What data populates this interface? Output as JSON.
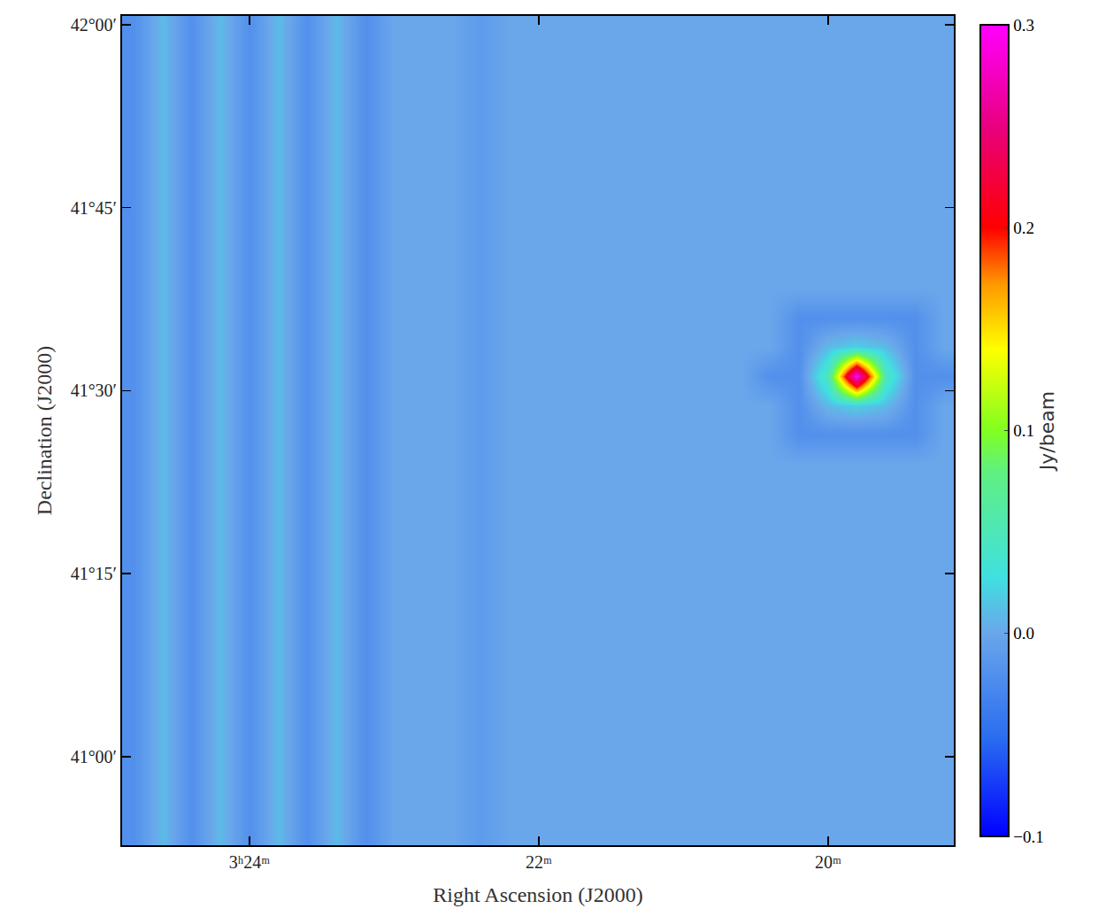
{
  "chart_data": {
    "type": "heatmap",
    "xlabel": "Right Ascension (J2000)",
    "ylabel": "Declination (J2000)",
    "xlim": [
      24.88,
      19.13
    ],
    "ylim": [
      40.879,
      42.012
    ],
    "xticks": [
      {
        "value": 24,
        "label": "3ʰ24ᵐ"
      },
      {
        "value": 22,
        "label": "22ᵐ"
      },
      {
        "value": 20,
        "label": "20ᵐ"
      }
    ],
    "yticks": [
      {
        "value": 42.0,
        "label": "42°00′"
      },
      {
        "value": 41.75,
        "label": "41°45′"
      },
      {
        "value": 41.5,
        "label": "41°30′"
      },
      {
        "value": 41.25,
        "label": "41°15′"
      },
      {
        "value": 41.0,
        "label": "41°00′"
      }
    ],
    "x": [
      24.8,
      24.6,
      24.4,
      24.2,
      24,
      23.8,
      23.6,
      23.4,
      23.2,
      23,
      22.8,
      22.6,
      22.4,
      22.2,
      22,
      21.8,
      21.6,
      21.4,
      21.2,
      21,
      20.8,
      20.6,
      20.4,
      20.2,
      20,
      19.8,
      19.6,
      19.4,
      19.2
    ],
    "y": [
      42.0,
      41.96,
      41.92,
      41.88,
      41.84,
      41.8,
      41.76,
      41.72,
      41.68,
      41.64,
      41.6,
      41.56,
      41.52,
      41.48,
      41.44,
      41.4,
      41.36,
      41.32,
      41.28,
      41.24,
      41.2,
      41.16,
      41.12,
      41.08,
      41.04,
      41.0,
      40.96,
      40.92,
      40.88
    ],
    "z": [
      [
        -0.02,
        0.01,
        -0.02,
        0.01,
        -0.02,
        0.01,
        -0.02,
        0.01,
        -0.02,
        0,
        0,
        0,
        -0.01,
        0,
        0,
        0,
        0,
        0,
        0,
        0,
        0,
        0,
        0,
        0,
        0,
        0,
        0,
        0,
        0
      ],
      [
        -0.02,
        0.01,
        -0.02,
        0.01,
        -0.02,
        0.01,
        -0.02,
        0.01,
        -0.02,
        0,
        0,
        0,
        -0.01,
        0,
        0,
        0,
        0,
        0,
        0,
        0,
        0,
        0,
        0,
        0,
        0,
        0,
        0,
        0,
        0
      ],
      [
        -0.02,
        0.01,
        -0.02,
        0.01,
        -0.02,
        0.01,
        -0.02,
        0.01,
        -0.02,
        0,
        0,
        0,
        -0.01,
        0,
        0,
        0,
        0,
        0,
        0,
        0,
        0,
        0,
        0,
        0,
        0,
        0,
        0,
        0,
        0
      ],
      [
        -0.02,
        0.01,
        -0.02,
        0.01,
        -0.02,
        0.01,
        -0.02,
        0.01,
        -0.02,
        0,
        0,
        0,
        -0.01,
        0,
        0,
        0,
        0,
        0,
        0,
        0,
        0,
        0,
        0,
        0,
        0,
        0,
        0,
        0,
        0
      ],
      [
        -0.02,
        0.01,
        -0.02,
        0.01,
        -0.02,
        0.01,
        -0.02,
        0.01,
        -0.02,
        0,
        0,
        0,
        -0.01,
        0,
        0,
        0,
        0,
        0,
        0,
        0,
        0,
        0,
        0,
        0,
        0,
        0,
        0,
        0,
        0
      ],
      [
        -0.02,
        0.01,
        -0.02,
        0.01,
        -0.02,
        0.01,
        -0.02,
        0.01,
        -0.02,
        0,
        0,
        0,
        -0.01,
        0,
        0,
        0,
        0,
        0,
        0,
        0,
        0,
        0,
        0,
        0,
        0,
        0,
        0,
        0,
        0
      ],
      [
        -0.02,
        0.01,
        -0.02,
        0.01,
        -0.02,
        0.01,
        -0.02,
        0.01,
        -0.02,
        0,
        0,
        0,
        -0.01,
        0,
        0,
        0,
        0,
        0,
        0,
        0,
        0,
        0,
        0,
        0,
        0,
        0,
        0,
        0,
        0
      ],
      [
        -0.02,
        0.01,
        -0.02,
        0.01,
        -0.02,
        0.01,
        -0.02,
        0.01,
        -0.02,
        0,
        0,
        0,
        -0.01,
        0,
        0,
        0,
        0,
        0,
        0,
        0,
        0,
        0,
        0,
        0,
        0,
        0,
        0,
        0,
        0
      ],
      [
        -0.02,
        0.01,
        -0.02,
        0.01,
        -0.02,
        0.01,
        -0.02,
        0.01,
        -0.02,
        0,
        0,
        0,
        -0.01,
        0,
        0,
        0,
        0,
        0,
        0,
        0,
        0,
        0,
        0,
        0,
        0,
        0,
        0,
        0,
        0
      ],
      [
        -0.02,
        0.01,
        -0.02,
        0.01,
        -0.02,
        0.01,
        -0.02,
        0.01,
        -0.02,
        0,
        0,
        0,
        -0.01,
        0,
        0,
        0,
        0,
        0,
        0,
        0,
        0,
        0,
        0,
        0,
        0,
        0,
        0,
        0,
        0
      ],
      [
        -0.02,
        0.01,
        -0.02,
        0.01,
        -0.02,
        0.01,
        -0.02,
        0.01,
        -0.02,
        0,
        0,
        0,
        -0.01,
        0,
        0,
        0,
        0,
        0,
        0,
        0,
        0,
        0,
        0,
        -0.02,
        -0.02,
        -0.02,
        -0.02,
        -0.02,
        0
      ],
      [
        -0.02,
        0.01,
        -0.02,
        0.01,
        -0.02,
        0.01,
        -0.02,
        0.01,
        -0.02,
        0,
        0,
        0,
        -0.01,
        0,
        0,
        0,
        0,
        0,
        0,
        0,
        0,
        0,
        0,
        -0.02,
        0.01,
        0.02,
        0.01,
        -0.02,
        0
      ],
      [
        -0.02,
        0.01,
        -0.02,
        0.01,
        -0.02,
        0.01,
        -0.02,
        0.01,
        -0.02,
        0,
        0,
        0,
        -0.01,
        0,
        0,
        0,
        0,
        0,
        0,
        0,
        0,
        0,
        -0.02,
        -0.02,
        0.05,
        0.3,
        0.05,
        -0.02,
        -0.02
      ],
      [
        -0.02,
        0.01,
        -0.02,
        0.01,
        -0.02,
        0.01,
        -0.02,
        0.01,
        -0.02,
        0,
        0,
        0,
        -0.01,
        0,
        0,
        0,
        0,
        0,
        0,
        0,
        0,
        0,
        0,
        -0.02,
        0.01,
        0.02,
        0.01,
        -0.02,
        0
      ],
      [
        -0.02,
        0.01,
        -0.02,
        0.01,
        -0.02,
        0.01,
        -0.02,
        0.01,
        -0.02,
        0,
        0,
        0,
        -0.01,
        0,
        0,
        0,
        0,
        0,
        0,
        0,
        0,
        0,
        0,
        -0.02,
        -0.02,
        -0.02,
        -0.02,
        -0.02,
        0
      ],
      [
        -0.02,
        0.01,
        -0.02,
        0.01,
        -0.02,
        0.01,
        -0.02,
        0.01,
        -0.02,
        0,
        0,
        0,
        -0.01,
        0,
        0,
        0,
        0,
        0,
        0,
        0,
        0,
        0,
        0,
        0,
        0,
        0,
        0,
        0,
        0
      ],
      [
        -0.02,
        0.01,
        -0.02,
        0.01,
        -0.02,
        0.01,
        -0.02,
        0.01,
        -0.02,
        0,
        0,
        0,
        -0.01,
        0,
        0,
        0,
        0,
        0,
        0,
        0,
        0,
        0,
        0,
        0,
        0,
        0,
        0,
        0,
        0
      ],
      [
        -0.02,
        0.01,
        -0.02,
        0.01,
        -0.02,
        0.01,
        -0.02,
        0.01,
        -0.02,
        0,
        0,
        0,
        -0.01,
        0,
        0,
        0,
        0,
        0,
        0,
        0,
        0,
        0,
        0,
        0,
        0,
        0,
        0,
        0,
        0
      ],
      [
        -0.02,
        0.01,
        -0.02,
        0.01,
        -0.02,
        0.01,
        -0.02,
        0.01,
        -0.02,
        0,
        0,
        0,
        -0.01,
        0,
        0,
        0,
        0,
        0,
        0,
        0,
        0,
        0,
        0,
        0,
        0,
        0,
        0,
        0,
        0
      ],
      [
        -0.02,
        0.01,
        -0.02,
        0.01,
        -0.02,
        0.01,
        -0.02,
        0.01,
        -0.02,
        0,
        0,
        0,
        -0.01,
        0,
        0,
        0,
        0,
        0,
        0,
        0,
        0,
        0,
        0,
        0,
        0,
        0,
        0,
        0,
        0
      ],
      [
        -0.02,
        0.01,
        -0.02,
        0.01,
        -0.02,
        0.01,
        -0.02,
        0.01,
        -0.02,
        0,
        0,
        0,
        -0.01,
        0,
        0,
        0,
        0,
        0,
        0,
        0,
        0,
        0,
        0,
        0,
        0,
        0,
        0,
        0,
        0
      ],
      [
        -0.02,
        0.01,
        -0.02,
        0.01,
        -0.02,
        0.01,
        -0.02,
        0.01,
        -0.02,
        0,
        0,
        0,
        -0.01,
        0,
        0,
        0,
        0,
        0,
        0,
        0,
        0,
        0,
        0,
        0,
        0,
        0,
        0,
        0,
        0
      ],
      [
        -0.02,
        0.01,
        -0.02,
        0.01,
        -0.02,
        0.01,
        -0.02,
        0.01,
        -0.02,
        0,
        0,
        0,
        -0.01,
        0,
        0,
        0,
        0,
        0,
        0,
        0,
        0,
        0,
        0,
        0,
        0,
        0,
        0,
        0,
        0
      ],
      [
        -0.02,
        0.01,
        -0.02,
        0.01,
        -0.02,
        0.01,
        -0.02,
        0.01,
        -0.02,
        0,
        0,
        0,
        -0.01,
        0,
        0,
        0,
        0,
        0,
        0,
        0,
        0,
        0,
        0,
        0,
        0,
        0,
        0,
        0,
        0
      ],
      [
        -0.02,
        0.01,
        -0.02,
        0.01,
        -0.02,
        0.01,
        -0.02,
        0.01,
        -0.02,
        0,
        0,
        0,
        -0.01,
        0,
        0,
        0,
        0,
        0,
        0,
        0,
        0,
        0,
        0,
        0,
        0,
        0,
        0,
        0,
        0
      ],
      [
        -0.02,
        0.01,
        -0.02,
        0.01,
        -0.02,
        0.01,
        -0.02,
        0.01,
        -0.02,
        0,
        0,
        0,
        -0.01,
        0,
        0,
        0,
        0,
        0,
        0,
        0,
        0,
        0,
        0,
        0,
        0,
        0,
        0,
        0,
        0
      ],
      [
        -0.02,
        0.01,
        -0.02,
        0.01,
        -0.02,
        0.01,
        -0.02,
        0.01,
        -0.02,
        0,
        0,
        0,
        -0.01,
        0,
        0,
        0,
        0,
        0,
        0,
        0,
        0,
        0,
        0,
        0,
        0,
        0,
        0,
        0,
        0
      ],
      [
        -0.02,
        0.01,
        -0.02,
        0.01,
        -0.02,
        0.01,
        -0.02,
        0.01,
        -0.02,
        0,
        0,
        0,
        -0.01,
        0,
        0,
        0,
        0,
        0,
        0,
        0,
        0,
        0,
        0,
        0,
        0,
        0,
        0,
        0,
        0
      ],
      [
        -0.02,
        0.01,
        -0.02,
        0.01,
        -0.02,
        0.01,
        -0.02,
        0.01,
        -0.02,
        0,
        0,
        0,
        -0.01,
        0,
        0,
        0,
        0,
        0,
        0,
        0,
        0,
        0,
        0,
        0,
        0,
        0,
        0,
        0,
        0
      ]
    ],
    "colorbar": {
      "label": "Jy/beam",
      "range": [
        -0.1,
        0.3
      ],
      "ticks": [
        {
          "value": -0.1,
          "label": "−0.1"
        },
        {
          "value": 0.0,
          "label": "0.0"
        },
        {
          "value": 0.1,
          "label": "0.1"
        },
        {
          "value": 0.2,
          "label": "0.2"
        },
        {
          "value": 0.3,
          "label": "0.3"
        }
      ]
    }
  }
}
